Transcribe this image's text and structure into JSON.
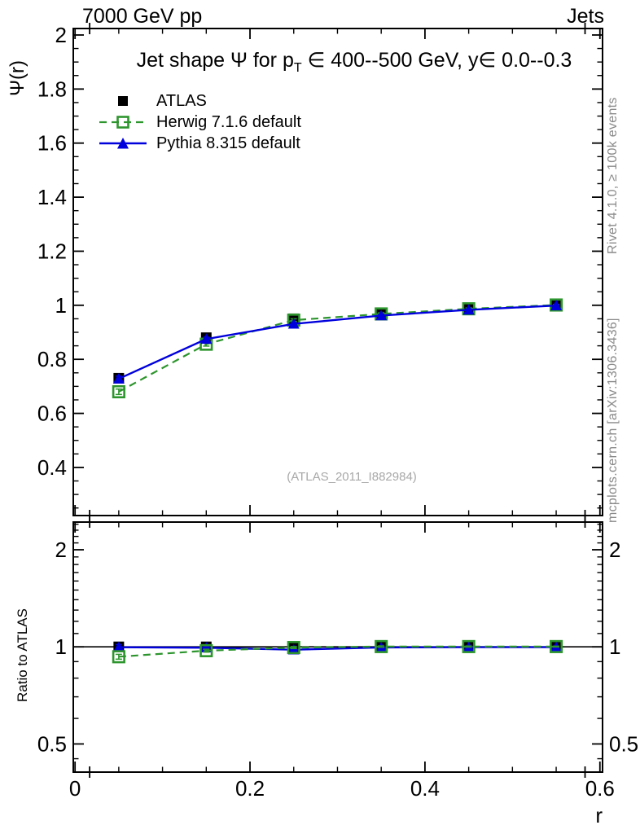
{
  "page": {
    "header_left": "7000 GeV pp",
    "header_right": "Jets",
    "right_note_top": "Rivet 4.1.0, ≥ 100k events",
    "right_note_bottom": "mcplots.cern.ch [arXiv:1306.3436]",
    "watermark": "(ATLAS_2011_I882984)"
  },
  "title": {
    "pre": "Jet shape Ψ for p",
    "sub": "T",
    "post": " ∈ 400--500 GeV, y∈ 0.0--0.3"
  },
  "colors": {
    "atlas": "#000000",
    "herwig": "#2d952d",
    "pythia": "#0000dc",
    "credits_gray": "#8a8a8a",
    "watermark_gray": "#a8a8a8",
    "frame": "#000000"
  },
  "chart_data": [
    {
      "id": "main",
      "type": "line",
      "title": "Jet shape Ψ for pT ∈ 400--500 GeV, y∈ 0.0--0.3",
      "xlabel": "r",
      "ylabel": "Ψ(r)",
      "grid": false,
      "legend_position": "top-left",
      "x": [
        0.05,
        0.15,
        0.25,
        0.35,
        0.45,
        0.55
      ],
      "xlim": [
        -0.002,
        0.603
      ],
      "ylim": [
        0.222,
        2.024
      ],
      "yscale": "linear",
      "xticks": [
        0,
        0.2,
        0.4,
        0.6
      ],
      "yticks": [
        0.4,
        0.6,
        0.8,
        1,
        1.2,
        1.4,
        1.6,
        1.8,
        2
      ],
      "series": [
        {
          "name": "ATLAS",
          "color": "#000000",
          "marker": "filled-square",
          "line": "none",
          "values": [
            0.73,
            0.88,
            0.95,
            0.966,
            0.985,
            1.0
          ],
          "yerr": [
            0.013,
            0.009,
            0.006,
            0.004,
            0.003,
            0.002
          ]
        },
        {
          "name": "Herwig 7.1.6 default",
          "color": "#2d952d",
          "marker": "open-square",
          "line": "dashed",
          "values": [
            0.68,
            0.856,
            0.945,
            0.968,
            0.987,
            1.001
          ],
          "yerr": [
            0.01,
            0.007,
            0.005,
            0.004,
            0.003,
            0.002
          ]
        },
        {
          "name": "Pythia 8.315 default",
          "color": "#0000dc",
          "marker": "filled-triangle",
          "line": "solid",
          "values": [
            0.728,
            0.875,
            0.931,
            0.962,
            0.983,
            0.999
          ],
          "yerr": [
            0.01,
            0.007,
            0.005,
            0.004,
            0.003,
            0.002
          ]
        }
      ]
    },
    {
      "id": "ratio",
      "type": "line",
      "ylabel": "Ratio to ATLAS",
      "reference_line": 1,
      "x": [
        0.05,
        0.15,
        0.25,
        0.35,
        0.45,
        0.55
      ],
      "xlim": [
        -0.002,
        0.603
      ],
      "ylim": [
        0.409,
        2.437
      ],
      "yscale": "log",
      "xticks": [
        0,
        0.2,
        0.4,
        0.6
      ],
      "yticks": [
        0.5,
        1,
        2
      ],
      "series": [
        {
          "name": "ATLAS",
          "color": "#000000",
          "marker": "filled-square",
          "line": "none",
          "values": [
            1,
            1,
            1,
            1,
            1,
            1
          ],
          "yerr": [
            0.018,
            0.01,
            0.007,
            0.005,
            0.003,
            0.002
          ]
        },
        {
          "name": "Pythia 8.315 default",
          "color": "#0000dc",
          "marker": "filled-triangle",
          "line": "solid",
          "values": [
            0.997,
            0.994,
            0.98,
            0.996,
            0.998,
            0.998
          ],
          "yerr": [
            0.02,
            0.012,
            0.008,
            0.006,
            0.004,
            0.003
          ]
        },
        {
          "name": "Herwig 7.1.6 default",
          "color": "#2d952d",
          "marker": "open-square",
          "line": "dashed",
          "values": [
            0.932,
            0.973,
            0.995,
            1.002,
            1.002,
            1.002
          ],
          "yerr": [
            0.016,
            0.01,
            0.007,
            0.005,
            0.004,
            0.003
          ]
        }
      ]
    }
  ]
}
